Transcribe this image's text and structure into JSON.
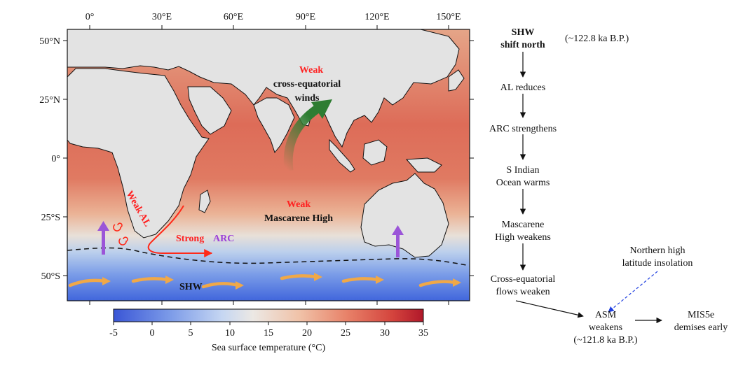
{
  "map": {
    "lon_ticks": [
      "0°",
      "30°E",
      "60°E",
      "90°E",
      "120°E",
      "150°E"
    ],
    "lat_ticks": [
      "50°N",
      "25°N",
      "0°",
      "25°S",
      "50°S"
    ],
    "labels": {
      "weak_cross_1": "Weak",
      "weak_cross_2": "cross-equatorial",
      "weak_cross_3": "winds",
      "weak_al": "Weak AL",
      "strong": "Strong",
      "arc": "ARC",
      "weak_mh_1": "Weak",
      "weak_mh_2": "Mascarene High",
      "shw": "SHW"
    },
    "colors": {
      "warm": "#d9544a",
      "cold": "#3a63d8",
      "land": "#e3e3e3",
      "red_text": "#ff2020",
      "purple": "#9b55d8",
      "orange_arrow": "#f0a848",
      "green_arrow": "#2e7d32"
    }
  },
  "colorbar": {
    "ticks": [
      "-5",
      "0",
      "5",
      "10",
      "15",
      "20",
      "25",
      "30",
      "35"
    ],
    "label": "Sea surface temperature (°C)"
  },
  "flowchart": {
    "shw_1": "SHW",
    "shw_2": "shift north",
    "shw_time": "(~122.8 ka B.P.)",
    "step_al": "AL reduces",
    "step_arc": "ARC strengthens",
    "step_sio_1": "S Indian",
    "step_sio_2": "Ocean warms",
    "step_mh_1": "Mascarene",
    "step_mh_2": "High weakens",
    "step_cef_1": "Cross-equatorial",
    "step_cef_2": "flows weaken",
    "nhi_1": "Northern high",
    "nhi_2": "latitude insolation",
    "asm_1": "ASM",
    "asm_2": "weakens",
    "asm_time": "(~121.8 ka B.P.)",
    "mis_1": "MIS5e",
    "mis_2": "demises early"
  }
}
